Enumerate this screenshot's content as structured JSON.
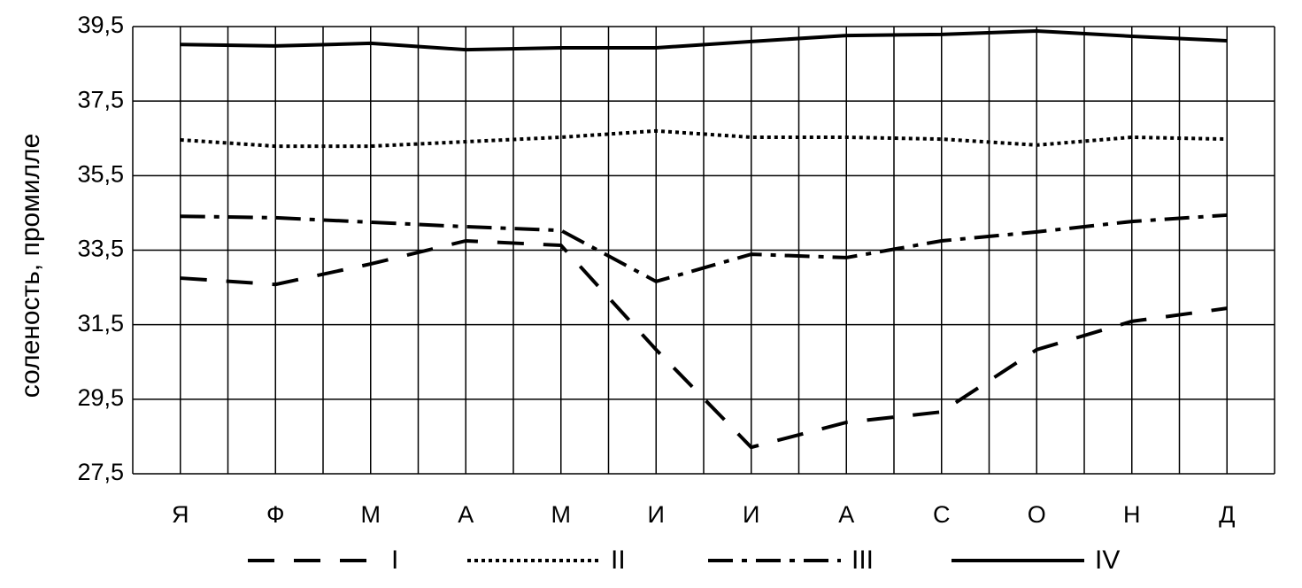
{
  "chart_data": {
    "type": "line",
    "y_label": "соленость, промилле",
    "categories": [
      "Я",
      "Ф",
      "М",
      "А",
      "М",
      "И",
      "И",
      "А",
      "С",
      "О",
      "Н",
      "Д"
    ],
    "ylim": [
      27.5,
      39.5
    ],
    "yticks": [
      {
        "value": 27.5,
        "label": "27,5"
      },
      {
        "value": 29.5,
        "label": "29,5"
      },
      {
        "value": 31.5,
        "label": "31,5"
      },
      {
        "value": 33.5,
        "label": "33,5"
      },
      {
        "value": 35.5,
        "label": "35,5"
      },
      {
        "value": 37.5,
        "label": "37,5"
      },
      {
        "value": 39.5,
        "label": "39,5"
      }
    ],
    "grid": true,
    "legend": "bottom",
    "series": [
      {
        "name": "I",
        "color": "#000000",
        "dash": "dashed",
        "values": [
          32.75,
          32.58,
          33.13,
          33.75,
          33.63,
          30.83,
          28.21,
          28.88,
          29.16,
          30.83,
          31.59,
          31.94
        ]
      },
      {
        "name": "II",
        "color": "#000000",
        "dash": "dotted",
        "values": [
          36.46,
          36.29,
          36.29,
          36.41,
          36.53,
          36.7,
          36.53,
          36.53,
          36.48,
          36.32,
          36.53,
          36.48
        ]
      },
      {
        "name": "III",
        "color": "#000000",
        "dash": "dashdot",
        "values": [
          34.41,
          34.37,
          34.25,
          34.13,
          34.03,
          32.66,
          33.39,
          33.3,
          33.75,
          33.99,
          34.27,
          34.44
        ]
      },
      {
        "name": "IV",
        "color": "#000000",
        "dash": "solid",
        "values": [
          39.02,
          38.98,
          39.05,
          38.88,
          38.93,
          38.93,
          39.1,
          39.26,
          39.29,
          39.38,
          39.24,
          39.12
        ]
      }
    ]
  }
}
